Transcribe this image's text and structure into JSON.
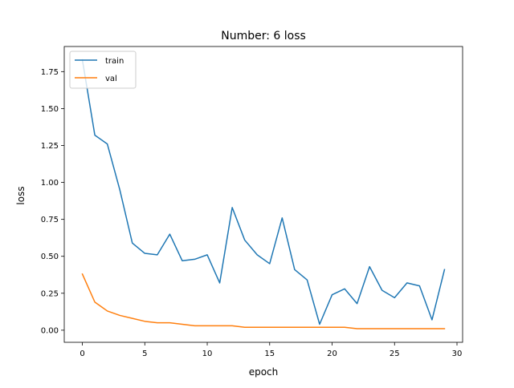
{
  "chart_data": {
    "type": "line",
    "title": "Number: 6 loss",
    "xlabel": "epoch",
    "ylabel": "loss",
    "xlim": [
      -1.45,
      30.45
    ],
    "ylim": [
      -0.082,
      1.92
    ],
    "xticks": [
      0,
      5,
      10,
      15,
      20,
      25,
      30
    ],
    "xtick_labels": [
      "0",
      "5",
      "10",
      "15",
      "20",
      "25",
      "30"
    ],
    "yticks": [
      0.0,
      0.25,
      0.5,
      0.75,
      1.0,
      1.25,
      1.5,
      1.75
    ],
    "ytick_labels": [
      "0.00",
      "0.25",
      "0.50",
      "0.75",
      "1.00",
      "1.25",
      "1.50",
      "1.75"
    ],
    "grid": false,
    "legend_position": "upper left",
    "x": [
      0,
      1,
      2,
      3,
      4,
      5,
      6,
      7,
      8,
      9,
      10,
      11,
      12,
      13,
      14,
      15,
      16,
      17,
      18,
      19,
      20,
      21,
      22,
      23,
      24,
      25,
      26,
      27,
      28,
      29
    ],
    "series": [
      {
        "name": "train",
        "color": "#1f77b4",
        "values": [
          1.83,
          1.32,
          1.26,
          0.95,
          0.59,
          0.52,
          0.51,
          0.65,
          0.47,
          0.48,
          0.51,
          0.32,
          0.83,
          0.61,
          0.51,
          0.45,
          0.76,
          0.41,
          0.34,
          0.04,
          0.24,
          0.28,
          0.18,
          0.43,
          0.27,
          0.22,
          0.32,
          0.3,
          0.07,
          0.41
        ]
      },
      {
        "name": "val",
        "color": "#ff7f0e",
        "values": [
          0.38,
          0.19,
          0.13,
          0.1,
          0.08,
          0.06,
          0.05,
          0.05,
          0.04,
          0.03,
          0.03,
          0.03,
          0.03,
          0.02,
          0.02,
          0.02,
          0.02,
          0.02,
          0.02,
          0.02,
          0.02,
          0.02,
          0.01,
          0.01,
          0.01,
          0.01,
          0.01,
          0.01,
          0.01,
          0.01
        ]
      }
    ]
  }
}
